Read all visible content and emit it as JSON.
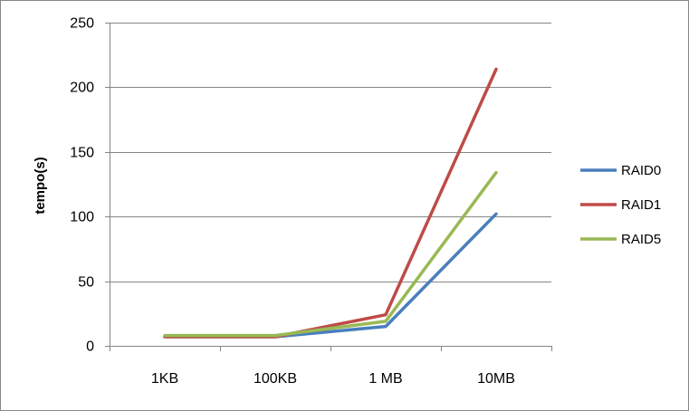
{
  "chart_data": {
    "type": "line",
    "categories": [
      "1KB",
      "100KB",
      "1 MB",
      "10MB"
    ],
    "series": [
      {
        "name": "RAID0",
        "values": [
          7,
          7,
          15,
          102
        ],
        "color": "#4a7ebb"
      },
      {
        "name": "RAID1",
        "values": [
          7,
          7,
          24,
          214
        ],
        "color": "#be4b48"
      },
      {
        "name": "RAID5",
        "values": [
          8,
          8,
          19,
          134
        ],
        "color": "#98b954"
      }
    ],
    "title": "",
    "xlabel": "",
    "ylabel": "tempo(s)",
    "ylim": [
      0,
      250
    ],
    "yticks": [
      0,
      50,
      100,
      150,
      200,
      250
    ],
    "grid": true,
    "legend_position": "right",
    "gridline_color": "#868686",
    "axis_color": "#868686"
  }
}
